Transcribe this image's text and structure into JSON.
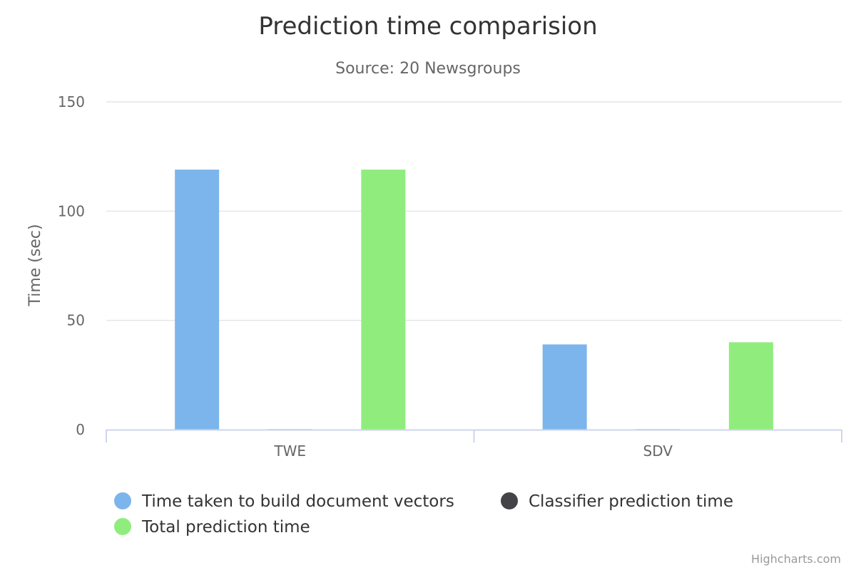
{
  "chart_data": {
    "type": "bar",
    "title": "Prediction time comparision",
    "subtitle": "Source: 20 Newsgroups",
    "xlabel": "",
    "ylabel": "Time (sec)",
    "categories": [
      "TWE",
      "SDV"
    ],
    "ylim": [
      0,
      150
    ],
    "yticks": [
      0,
      50,
      100,
      150
    ],
    "grid": true,
    "legend_position": "bottom",
    "series": [
      {
        "name": "Time taken to build document vectors",
        "color": "#7cb5ec",
        "values": [
          119,
          39
        ]
      },
      {
        "name": "Classifier prediction time",
        "color": "#434348",
        "values": [
          0.2,
          0.2
        ]
      },
      {
        "name": "Total prediction time",
        "color": "#90ed7d",
        "values": [
          119,
          40
        ]
      }
    ]
  },
  "credits": "Highcharts.com"
}
